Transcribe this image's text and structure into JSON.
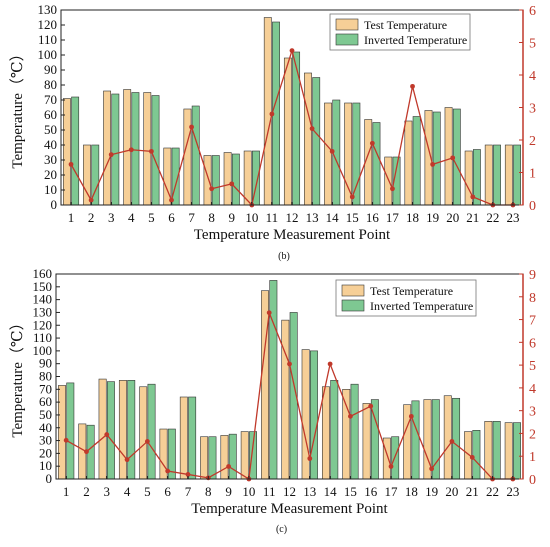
{
  "colors": {
    "test": "#f6cf97",
    "inverted": "#7ec892",
    "bar_stroke": "#333333",
    "error_line": "#c0392b",
    "error_axis": "#c0392b",
    "text": "#111111"
  },
  "chart_data": [
    {
      "type": "bar",
      "caption": "(b)",
      "xlabel": "Temperature Measurement Point",
      "ylabel": "Temperature（℃）",
      "ylim": [
        0,
        130
      ],
      "yticks": [
        0,
        10,
        20,
        30,
        40,
        50,
        60,
        70,
        80,
        90,
        100,
        110,
        120,
        130
      ],
      "y2lim": [
        0,
        6
      ],
      "y2ticks": [
        0,
        1,
        2,
        3,
        4,
        5,
        6
      ],
      "legend": "top-right",
      "categories": [
        "1",
        "2",
        "3",
        "4",
        "5",
        "6",
        "7",
        "8",
        "9",
        "10",
        "11",
        "12",
        "13",
        "14",
        "15",
        "16",
        "17",
        "18",
        "19",
        "20",
        "21",
        "22",
        "23"
      ],
      "series": [
        {
          "name": "Test Temperature",
          "values": [
            71,
            40,
            76,
            77,
            75,
            38,
            64,
            33,
            35,
            36,
            125,
            98,
            88,
            68,
            68,
            57,
            32,
            56,
            63,
            65,
            36,
            40,
            40
          ]
        },
        {
          "name": "Inverted Temperature",
          "values": [
            72,
            40,
            74,
            75,
            73,
            38,
            66,
            33,
            34,
            36,
            122,
            102,
            85,
            70,
            68,
            55,
            32,
            59,
            62,
            64,
            37,
            40,
            40
          ]
        }
      ],
      "error_series": {
        "values": [
          1.25,
          0.15,
          1.55,
          1.7,
          1.65,
          0.15,
          2.4,
          0.5,
          0.65,
          0.0,
          2.8,
          4.75,
          2.35,
          1.65,
          0.25,
          1.9,
          0.5,
          3.65,
          1.25,
          1.45,
          0.25,
          0.0,
          0.0
        ]
      }
    },
    {
      "type": "bar",
      "caption": "(c)",
      "xlabel": "Temperature Measurement Point",
      "ylabel": "Temperature（℃）",
      "ylim": [
        0,
        160
      ],
      "yticks": [
        0,
        10,
        20,
        30,
        40,
        50,
        60,
        70,
        80,
        90,
        100,
        110,
        120,
        130,
        140,
        150,
        160
      ],
      "y2lim": [
        0,
        9
      ],
      "y2ticks": [
        0,
        1,
        2,
        3,
        4,
        5,
        6,
        7,
        8,
        9
      ],
      "legend": "top-right",
      "categories": [
        "1",
        "2",
        "3",
        "4",
        "5",
        "6",
        "7",
        "8",
        "9",
        "10",
        "11",
        "12",
        "13",
        "14",
        "15",
        "16",
        "17",
        "18",
        "19",
        "20",
        "21",
        "22",
        "23"
      ],
      "series": [
        {
          "name": "Test Temperature",
          "values": [
            73,
            43,
            78,
            77,
            72,
            39,
            64,
            33,
            34,
            37,
            147,
            124,
            101,
            72,
            70,
            59,
            32,
            58,
            62,
            65,
            37,
            45,
            44
          ]
        },
        {
          "name": "Inverted Temperature",
          "values": [
            75,
            42,
            76,
            77,
            74,
            39,
            64,
            33,
            35,
            37,
            155,
            130,
            100,
            77,
            74,
            62,
            33,
            61,
            62,
            63,
            38,
            45,
            44
          ]
        }
      ],
      "error_series": {
        "values": [
          1.7,
          1.2,
          1.95,
          0.85,
          1.65,
          0.35,
          0.2,
          0.05,
          0.55,
          0.0,
          7.3,
          5.05,
          0.9,
          5.05,
          2.75,
          3.2,
          0.55,
          2.75,
          0.45,
          1.65,
          0.95,
          0.0,
          0.0
        ]
      }
    }
  ]
}
